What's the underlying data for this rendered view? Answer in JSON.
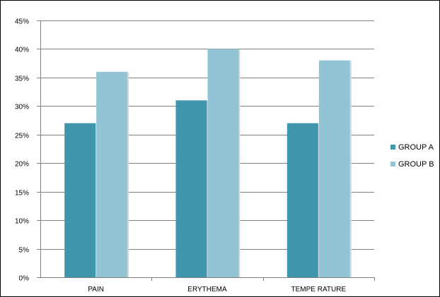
{
  "chart_data": {
    "type": "bar",
    "categories": [
      "PAIN",
      "ERYTHEMA",
      "TEMPE RATURE"
    ],
    "series": [
      {
        "name": "GROUP A",
        "values": [
          27,
          31,
          27
        ],
        "color": "#4097ad"
      },
      {
        "name": "GROUP B",
        "values": [
          36,
          40,
          38
        ],
        "color": "#93c4d6"
      }
    ],
    "ylim": [
      0,
      45
    ],
    "yticks": [
      0,
      5,
      10,
      15,
      20,
      25,
      30,
      35,
      40,
      45
    ],
    "ytick_labels": [
      "0%",
      "5%",
      "10%",
      "15%",
      "20%",
      "25%",
      "30%",
      "35%",
      "40%",
      "45%"
    ],
    "grid": true,
    "legend_position": "right",
    "gridline_color": "#7f7f7f"
  }
}
